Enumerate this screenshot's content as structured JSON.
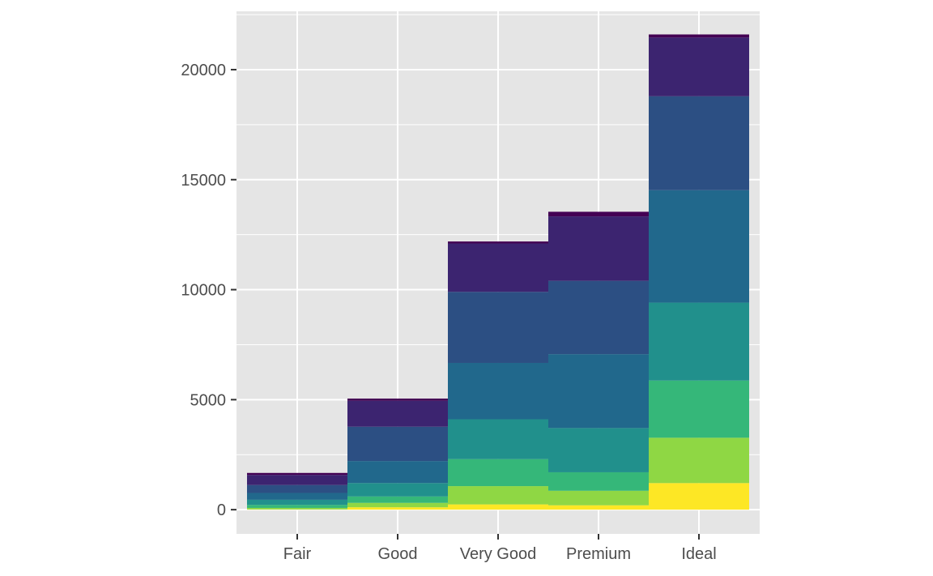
{
  "chart_data": {
    "type": "bar",
    "stacked": true,
    "categories": [
      "Fair",
      "Good",
      "Very Good",
      "Premium",
      "Ideal"
    ],
    "series": [
      {
        "color": "#fde725",
        "values": [
          10,
          110,
          240,
          200,
          1210
        ]
      },
      {
        "color": "#8fd744",
        "values": [
          70,
          200,
          830,
          660,
          2060
        ]
      },
      {
        "color": "#35b779",
        "values": [
          140,
          290,
          1230,
          840,
          2600
        ]
      },
      {
        "color": "#21908c",
        "values": [
          230,
          610,
          1810,
          2010,
          3540
        ]
      },
      {
        "color": "#21688c",
        "values": [
          310,
          1000,
          2560,
          3360,
          5110
        ]
      },
      {
        "color": "#2c4f83",
        "values": [
          360,
          1560,
          3230,
          3330,
          4270
        ]
      },
      {
        "color": "#3c2470",
        "values": [
          460,
          1180,
          2200,
          2930,
          2670
        ]
      },
      {
        "color": "#440154",
        "values": [
          90,
          100,
          90,
          210,
          140
        ]
      }
    ],
    "ylim": [
      -1100,
      22650
    ],
    "yticks": [
      0,
      5000,
      10000,
      15000,
      20000
    ],
    "grid": true,
    "legend": "none",
    "xlabel": "",
    "ylabel": "",
    "panel_background": "#e5e5e5",
    "grid_color": "#ffffff"
  }
}
